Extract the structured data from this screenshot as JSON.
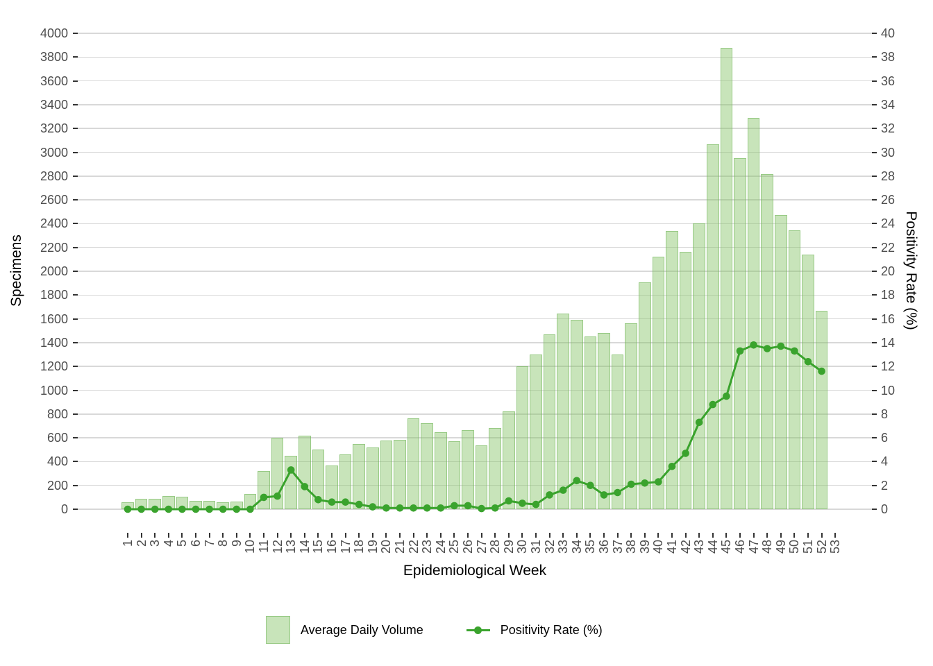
{
  "axes": {
    "left": {
      "title": "Specimens",
      "ticks": [
        0,
        200,
        400,
        600,
        800,
        1000,
        1200,
        1400,
        1600,
        1800,
        2000,
        2200,
        2400,
        2600,
        2800,
        3000,
        3200,
        3400,
        3600,
        3800,
        4000
      ]
    },
    "right": {
      "title": "Positivity Rate (%)",
      "ticks": [
        0,
        2,
        4,
        6,
        8,
        10,
        12,
        14,
        16,
        18,
        20,
        22,
        24,
        26,
        28,
        30,
        32,
        34,
        36,
        38,
        40
      ]
    },
    "bottom": {
      "title": "Epidemiological Week",
      "ticks": [
        1,
        2,
        3,
        4,
        5,
        6,
        7,
        8,
        9,
        10,
        11,
        12,
        13,
        14,
        15,
        16,
        17,
        18,
        19,
        20,
        21,
        22,
        23,
        24,
        25,
        26,
        27,
        28,
        29,
        30,
        31,
        32,
        33,
        34,
        35,
        36,
        37,
        38,
        39,
        40,
        41,
        42,
        43,
        44,
        45,
        46,
        47,
        48,
        49,
        50,
        51,
        52,
        53
      ]
    }
  },
  "legend": {
    "items": [
      {
        "label": "Average Daily Volume",
        "marker": "swatch"
      },
      {
        "label": "Positivity Rate (%)",
        "marker": "line-point"
      }
    ]
  },
  "colors": {
    "bar_fill": "rgba(133,195,102,0.45)",
    "bar_edge": "rgba(104,176,80,0.5)",
    "line": "#3aa32d",
    "grid": "#d8d8d8",
    "tick": "#333333",
    "tick_label": "#4d4d4d",
    "title": "#000000"
  },
  "chart_data": {
    "type": "bar+line",
    "x_label": "Epidemiological Week",
    "categories": [
      1,
      2,
      3,
      4,
      5,
      6,
      7,
      8,
      9,
      10,
      11,
      12,
      13,
      14,
      15,
      16,
      17,
      18,
      19,
      20,
      21,
      22,
      23,
      24,
      25,
      26,
      27,
      28,
      29,
      30,
      31,
      32,
      33,
      34,
      35,
      36,
      37,
      38,
      39,
      40,
      41,
      42,
      43,
      44,
      45,
      46,
      47,
      48,
      49,
      50,
      51,
      52,
      53
    ],
    "series": [
      {
        "name": "Average Daily Volume",
        "type": "bar",
        "axis": "left",
        "ylim": [
          0,
          4000
        ],
        "values": [
          60,
          90,
          85,
          110,
          105,
          70,
          70,
          60,
          65,
          130,
          320,
          600,
          450,
          620,
          500,
          370,
          460,
          550,
          520,
          575,
          585,
          765,
          725,
          650,
          570,
          665,
          535,
          685,
          820,
          1200,
          1300,
          1470,
          1645,
          1590,
          1450,
          1480,
          1300,
          1565,
          1905,
          2125,
          2340,
          2165,
          2400,
          3065,
          3880,
          2950,
          3290,
          2815,
          2475,
          2345,
          2140,
          1670,
          null
        ]
      },
      {
        "name": "Positivity Rate (%)",
        "type": "line",
        "axis": "right",
        "ylim": [
          0,
          40
        ],
        "values": [
          0,
          0,
          0,
          0,
          0,
          0,
          0,
          0,
          0,
          0,
          1.0,
          1.1,
          3.3,
          1.9,
          0.8,
          0.6,
          0.6,
          0.4,
          0.2,
          0.1,
          0.1,
          0.1,
          0.1,
          0.1,
          0.3,
          0.3,
          0.05,
          0.1,
          0.7,
          0.5,
          0.4,
          1.2,
          1.6,
          2.4,
          2.0,
          1.2,
          1.4,
          2.1,
          2.2,
          2.3,
          3.6,
          4.7,
          7.3,
          8.8,
          9.5,
          13.3,
          13.8,
          13.5,
          13.7,
          13.3,
          12.4,
          11.6,
          null
        ]
      }
    ],
    "grid": "horizontal-only",
    "legend_position": "bottom-center"
  }
}
